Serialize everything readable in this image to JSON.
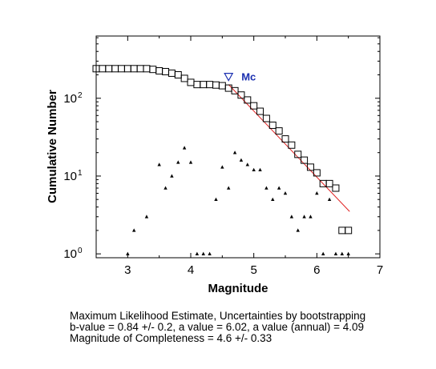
{
  "chart_data": {
    "type": "scatter",
    "xlabel": "Magnitude",
    "ylabel": "Cumulative Number",
    "xlim": [
      2.5,
      7
    ],
    "ylim_log10": [
      -0.05,
      2.8
    ],
    "yscale": "log",
    "x_ticks": [
      3,
      4,
      5,
      6,
      7
    ],
    "y_ticks": [
      {
        "label_base": "10",
        "label_exp": "0",
        "value": 1
      },
      {
        "label_base": "10",
        "label_exp": "1",
        "value": 10
      },
      {
        "label_base": "10",
        "label_exp": "2",
        "value": 100
      }
    ],
    "grid": false,
    "series": [
      {
        "marker": "square",
        "x": [
          2.5,
          2.6,
          2.7,
          2.8,
          2.9,
          3.0,
          3.1,
          3.2,
          3.3,
          3.4,
          3.5,
          3.6,
          3.7,
          3.8,
          3.9,
          4.0,
          4.1,
          4.2,
          4.3,
          4.4,
          4.5,
          4.6,
          4.7,
          4.8,
          4.9,
          5.0,
          5.1,
          5.2,
          5.3,
          5.4,
          5.5,
          5.6,
          5.7,
          5.8,
          5.9,
          6.0,
          6.1,
          6.2,
          6.3,
          6.4,
          6.5
        ],
        "y": [
          240,
          240,
          240,
          240,
          240,
          240,
          240,
          240,
          240,
          235,
          225,
          220,
          210,
          200,
          180,
          160,
          150,
          150,
          150,
          148,
          145,
          135,
          125,
          110,
          95,
          80,
          68,
          55,
          45,
          38,
          30,
          25,
          19,
          16,
          13,
          11,
          8,
          8,
          7,
          2,
          2
        ]
      },
      {
        "marker": "triangle",
        "x": [
          3.0,
          3.1,
          3.3,
          3.5,
          3.6,
          3.7,
          3.8,
          3.9,
          4.0,
          4.1,
          4.2,
          4.3,
          4.4,
          4.5,
          4.6,
          4.7,
          4.8,
          4.9,
          5.0,
          5.1,
          5.2,
          5.3,
          5.4,
          5.5,
          5.6,
          5.7,
          5.8,
          5.9,
          6.0,
          6.1,
          6.2,
          6.3,
          6.4,
          6.5
        ],
        "y": [
          1,
          2,
          3,
          14,
          7,
          10,
          15,
          23,
          15,
          1,
          1,
          1,
          5,
          13,
          7,
          20,
          16,
          14,
          12,
          12,
          7,
          5,
          7,
          6,
          3,
          2,
          3,
          3,
          6,
          1,
          5,
          1,
          1,
          1
        ]
      }
    ],
    "fit_line": {
      "x": [
        4.6,
        6.52
      ],
      "y": [
        150,
        3.5
      ],
      "color": "#e02020"
    },
    "mc_marker": {
      "x": 4.6,
      "y": 190,
      "label": "Mc",
      "color": "#1a2fb0"
    }
  },
  "caption": {
    "line1": "Maximum Likelihood Estimate, Uncertainties by bootstrapping",
    "line2": "b-value = 0.84 +/- 0.2,  a value = 6.02,  a value (annual) = 4.09",
    "line3": "Magnitude of Completeness = 4.6 +/- 0.33"
  }
}
